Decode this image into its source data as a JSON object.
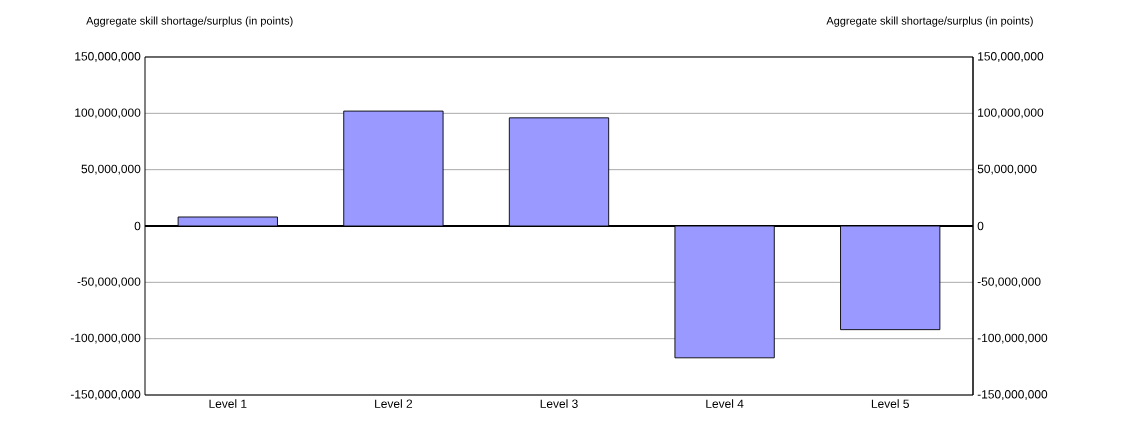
{
  "chart_data": {
    "type": "bar",
    "ylabel": "Aggregate skill shortage/surplus (in points)",
    "y2label": "Aggregate skill shortage/surplus (in points)",
    "categories": [
      "Level 1",
      "Level 2",
      "Level 3",
      "Level 4",
      "Level 5"
    ],
    "values": [
      8000000,
      102000000,
      96000000,
      -117000000,
      -92000000
    ],
    "color": "#9999ff",
    "ylim": [
      -150000000,
      150000000
    ],
    "yticks": [
      {
        "value": -150000000,
        "label": "-150,000,000"
      },
      {
        "value": -100000000,
        "label": "-100,000,000"
      },
      {
        "value": -50000000,
        "label": "-50,000,000"
      },
      {
        "value": 0,
        "label": "0"
      },
      {
        "value": 50000000,
        "label": "50,000,000"
      },
      {
        "value": 100000000,
        "label": "100,000,000"
      },
      {
        "value": 150000000,
        "label": "150,000,000"
      }
    ],
    "y2lim": [
      -150000000,
      150000000
    ],
    "y2ticks": [
      {
        "value": -150000000,
        "label": "-150,000,000"
      },
      {
        "value": -100000000,
        "label": "-100,000,000"
      },
      {
        "value": -50000000,
        "label": "-50,000,000"
      },
      {
        "value": 0,
        "label": "0"
      },
      {
        "value": 50000000,
        "label": "50,000,000"
      },
      {
        "value": 100000000,
        "label": "100,000,000"
      },
      {
        "value": 150000000,
        "label": "150,000,000"
      }
    ],
    "grid": "y"
  }
}
